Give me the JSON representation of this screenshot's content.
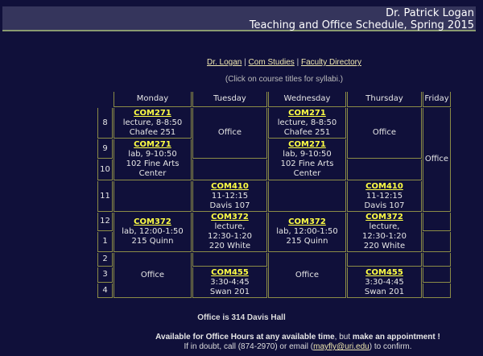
{
  "header": {
    "name": "Dr. Patrick Logan",
    "title": "Teaching and Office Schedule, Spring 2015"
  },
  "nav": {
    "links": [
      "Dr. Logan",
      "Com Studies",
      "Faculty Directory"
    ],
    "separator": "|"
  },
  "note": "(Click on course titles for syllabi.)",
  "schedule": {
    "days": [
      "Monday",
      "Tuesday",
      "Wednesday",
      "Thursday",
      "Friday"
    ],
    "hours": [
      "8",
      "9",
      "10",
      "11",
      "12",
      "1",
      "2",
      "3",
      "4"
    ],
    "office": "Office",
    "com271_lec": {
      "code": "COM271",
      "l1": "lecture, 8-8:50",
      "l2": "Chafee 251"
    },
    "com271_lab": {
      "code": "COM271",
      "l1": "lab, 9-10:50",
      "l2": "102 Fine Arts",
      "l3": "Center"
    },
    "com410": {
      "code": "COM410",
      "l1": "11-12:15",
      "l2": "Davis 107"
    },
    "com372_lab": {
      "code": "COM372",
      "l1": "lab, 12:00-1:50",
      "l2": "215 Quinn"
    },
    "com372_lec": {
      "code": "COM372",
      "l1": "lecture,",
      "l2": "12:30-1:20",
      "l3": "220 White"
    },
    "com455": {
      "code": "COM455",
      "l1": "3:30-4:45",
      "l2": "Swan 201"
    }
  },
  "footer": {
    "office_location": "Office is 314 Davis Hall",
    "avail_bold": "Available for Office Hours at any available time",
    "avail_mid": ", but ",
    "avail_bold2": "make an appointment !",
    "doubt_pre": "If in doubt, call (874-2970) or email (",
    "email": "mayfly@uri.edu",
    "doubt_post": ") to confirm."
  },
  "colors": {
    "background": "#10103a",
    "header_bar": "#35355c",
    "course_link": "#ffff44",
    "border": "#8c8c46"
  }
}
